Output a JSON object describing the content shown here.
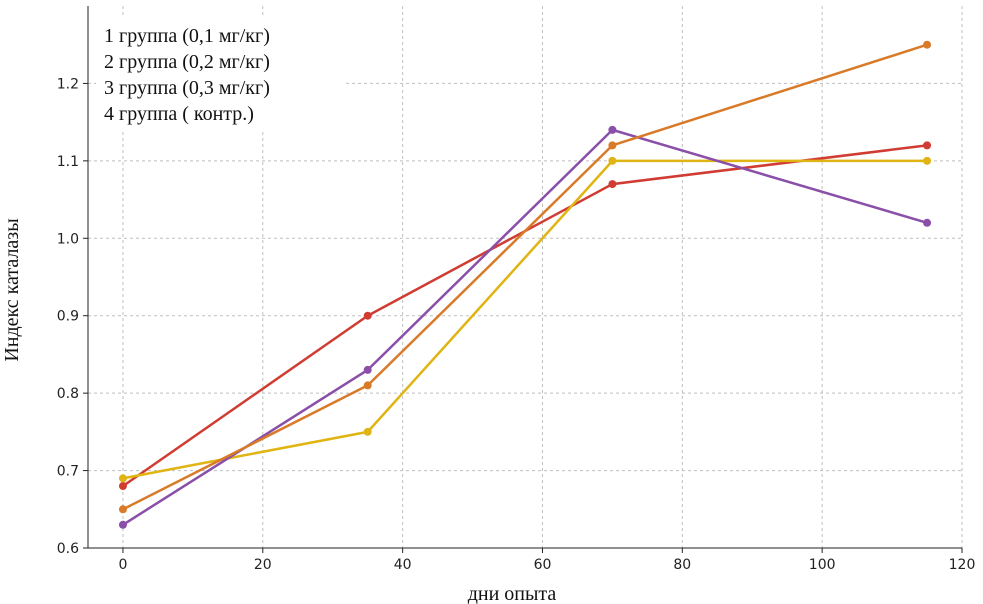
{
  "chart_data": {
    "type": "line",
    "xlabel": "дни опыта",
    "ylabel": "Индекс каталазы",
    "xlim": [
      -5,
      120
    ],
    "ylim": [
      0.6,
      1.3
    ],
    "xticks": [
      "0",
      "20",
      "40",
      "60",
      "80",
      "100",
      "120"
    ],
    "yticks": [
      "0.6",
      "0.7",
      "0.8",
      "0.9",
      "1.0",
      "1.1",
      "1.2"
    ],
    "grid": true,
    "legend_position": "top-left",
    "legend": [
      "1 группа (0,1 мг/кг)",
      "2 группа (0,2 мг/кг)",
      "3 группа (0,3 мг/кг)",
      "4 группа ( контр.)"
    ],
    "x": [
      0,
      35,
      70,
      115
    ],
    "series": [
      {
        "color": "#d03c32",
        "values": [
          0.68,
          0.9,
          1.07,
          1.12
        ]
      },
      {
        "color": "#e0b412",
        "values": [
          0.69,
          0.75,
          1.1,
          1.1
        ]
      },
      {
        "color": "#8a4fa8",
        "values": [
          0.63,
          0.83,
          1.14,
          1.02
        ]
      },
      {
        "color": "#d97a28",
        "values": [
          0.65,
          0.81,
          1.12,
          1.25
        ]
      }
    ]
  }
}
